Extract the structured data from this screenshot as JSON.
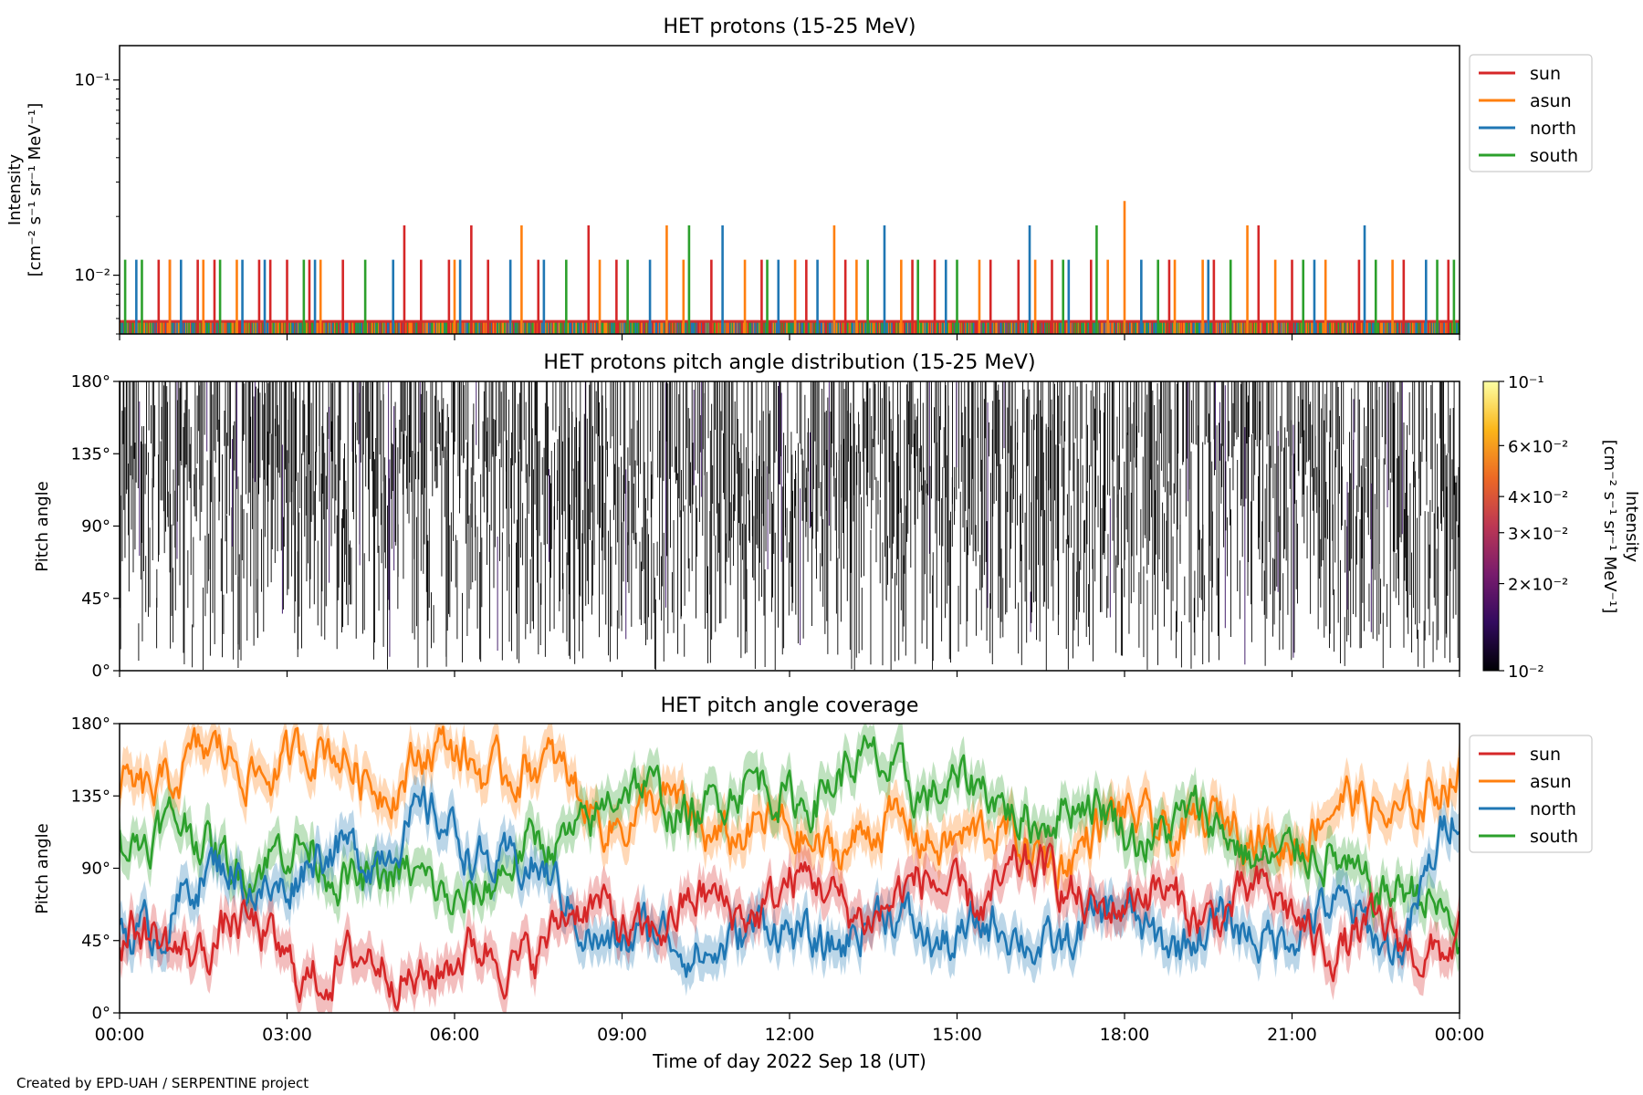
{
  "chart_data": [
    {
      "type": "line",
      "title": "HET protons (15-25 MeV)",
      "ylabel_line1": "Intensity",
      "ylabel_line2": "[cm⁻² s⁻¹ sr⁻¹ MeV⁻¹]",
      "yscale": "log",
      "ylim": [
        0.005,
        0.15
      ],
      "yticks": [
        0.01,
        0.1
      ],
      "ytick_labels": [
        "10⁻²",
        "10⁻¹"
      ],
      "xlim_hours": [
        0,
        24
      ],
      "legend": {
        "placement": "outside-right-top",
        "entries": [
          "sun",
          "asun",
          "north",
          "south"
        ]
      },
      "baseline_value": 0.0058,
      "series": [
        {
          "name": "sun",
          "color": "#d62728",
          "spikes": [
            [
              0.7,
              0.012
            ],
            [
              0.9,
              0.012
            ],
            [
              1.4,
              0.012
            ],
            [
              1.7,
              0.012
            ],
            [
              2.5,
              0.012
            ],
            [
              2.7,
              0.012
            ],
            [
              3.0,
              0.012
            ],
            [
              3.4,
              0.012
            ],
            [
              4.0,
              0.012
            ],
            [
              5.1,
              0.018
            ],
            [
              5.4,
              0.012
            ],
            [
              5.9,
              0.012
            ],
            [
              6.3,
              0.018
            ],
            [
              6.6,
              0.012
            ],
            [
              7.5,
              0.012
            ],
            [
              8.4,
              0.018
            ],
            [
              8.9,
              0.012
            ],
            [
              10.6,
              0.012
            ],
            [
              11.5,
              0.012
            ],
            [
              12.3,
              0.012
            ],
            [
              13.0,
              0.012
            ],
            [
              14.2,
              0.012
            ],
            [
              14.6,
              0.012
            ],
            [
              15.6,
              0.012
            ],
            [
              16.1,
              0.012
            ],
            [
              16.7,
              0.012
            ],
            [
              17.4,
              0.012
            ],
            [
              18.8,
              0.012
            ],
            [
              19.6,
              0.012
            ],
            [
              20.4,
              0.018
            ],
            [
              21.0,
              0.012
            ],
            [
              22.2,
              0.012
            ],
            [
              23.0,
              0.012
            ],
            [
              23.8,
              0.012
            ]
          ]
        },
        {
          "name": "asun",
          "color": "#ff7f0e",
          "spikes": [
            [
              0.9,
              0.012
            ],
            [
              1.5,
              0.012
            ],
            [
              2.1,
              0.012
            ],
            [
              3.6,
              0.012
            ],
            [
              6.0,
              0.012
            ],
            [
              7.2,
              0.018
            ],
            [
              8.6,
              0.012
            ],
            [
              9.8,
              0.018
            ],
            [
              10.1,
              0.012
            ],
            [
              11.2,
              0.012
            ],
            [
              12.1,
              0.012
            ],
            [
              12.8,
              0.018
            ],
            [
              13.2,
              0.012
            ],
            [
              14.0,
              0.012
            ],
            [
              15.4,
              0.012
            ],
            [
              16.4,
              0.012
            ],
            [
              17.7,
              0.012
            ],
            [
              18.0,
              0.024
            ],
            [
              18.9,
              0.012
            ],
            [
              19.4,
              0.012
            ],
            [
              20.2,
              0.018
            ],
            [
              20.7,
              0.012
            ],
            [
              21.6,
              0.012
            ],
            [
              22.8,
              0.012
            ]
          ]
        },
        {
          "name": "north",
          "color": "#1f77b4",
          "spikes": [
            [
              0.3,
              0.012
            ],
            [
              1.1,
              0.012
            ],
            [
              2.2,
              0.012
            ],
            [
              2.6,
              0.012
            ],
            [
              3.5,
              0.012
            ],
            [
              4.9,
              0.012
            ],
            [
              6.1,
              0.012
            ],
            [
              7.0,
              0.012
            ],
            [
              7.6,
              0.012
            ],
            [
              9.5,
              0.012
            ],
            [
              10.8,
              0.018
            ],
            [
              11.8,
              0.012
            ],
            [
              12.5,
              0.012
            ],
            [
              13.7,
              0.018
            ],
            [
              14.8,
              0.012
            ],
            [
              16.3,
              0.018
            ],
            [
              17.0,
              0.012
            ],
            [
              18.3,
              0.012
            ],
            [
              19.5,
              0.012
            ],
            [
              21.4,
              0.012
            ],
            [
              22.3,
              0.018
            ],
            [
              23.4,
              0.012
            ]
          ]
        },
        {
          "name": "south",
          "color": "#2ca02c",
          "spikes": [
            [
              0.1,
              0.012
            ],
            [
              0.4,
              0.012
            ],
            [
              1.8,
              0.012
            ],
            [
              3.3,
              0.012
            ],
            [
              4.4,
              0.012
            ],
            [
              8.0,
              0.012
            ],
            [
              9.1,
              0.012
            ],
            [
              10.2,
              0.018
            ],
            [
              11.6,
              0.012
            ],
            [
              13.4,
              0.012
            ],
            [
              14.3,
              0.012
            ],
            [
              15.0,
              0.012
            ],
            [
              16.9,
              0.012
            ],
            [
              17.5,
              0.018
            ],
            [
              18.6,
              0.012
            ],
            [
              19.9,
              0.012
            ],
            [
              21.2,
              0.012
            ],
            [
              22.5,
              0.012
            ],
            [
              23.6,
              0.012
            ],
            [
              23.9,
              0.012
            ]
          ]
        }
      ]
    },
    {
      "type": "heatmap",
      "title": "HET protons pitch angle distribution (15-25 MeV)",
      "ylabel": "Pitch angle",
      "ylim": [
        0,
        180
      ],
      "yticks": [
        0,
        45,
        90,
        135,
        180
      ],
      "ytick_labels": [
        "0°",
        "45°",
        "90°",
        "135°",
        "180°"
      ],
      "xlim_hours": [
        0,
        24
      ],
      "colorbar": {
        "label": "Intensity",
        "units": "[cm⁻² s⁻¹ sr⁻¹ MeV⁻¹]",
        "scale": "log",
        "range": [
          0.01,
          0.1
        ],
        "ticks": [
          0.01,
          0.02,
          0.03,
          0.04,
          0.06,
          0.1
        ],
        "tick_labels": [
          "10⁻²",
          "2×10⁻²",
          "3×10⁻²",
          "4×10⁻²",
          "6×10⁻²",
          "10⁻¹"
        ],
        "colormap": "inferno",
        "stops": [
          "#000004",
          "#320a5e",
          "#781c6d",
          "#bc3754",
          "#ed6925",
          "#fbb61a",
          "#fcffa4"
        ]
      },
      "note": "sparse near-minimum intensities rendered as dark vertical strokes"
    },
    {
      "type": "line",
      "title": "HET pitch angle coverage",
      "ylabel": "Pitch angle",
      "xlabel": "Time of day 2022 Sep 18 (UT)",
      "ylim": [
        0,
        180
      ],
      "yticks": [
        0,
        45,
        90,
        135,
        180
      ],
      "ytick_labels": [
        "0°",
        "45°",
        "90°",
        "135°",
        "180°"
      ],
      "xlim_hours": [
        0,
        24
      ],
      "xticks_hours": [
        0,
        3,
        6,
        9,
        12,
        15,
        18,
        21,
        24
      ],
      "xtick_labels": [
        "00:00",
        "03:00",
        "06:00",
        "09:00",
        "12:00",
        "15:00",
        "18:00",
        "21:00",
        "00:00"
      ],
      "legend": {
        "placement": "outside-right-top",
        "entries": [
          "sun",
          "asun",
          "north",
          "south"
        ]
      },
      "shaded_half_width_deg": 12,
      "series": [
        {
          "name": "sun",
          "color": "#d62728",
          "hours": [
            0,
            1,
            2,
            3,
            4,
            5,
            6,
            7,
            8,
            9,
            10,
            11,
            12,
            13,
            14,
            15,
            16,
            17,
            18,
            19,
            20,
            21,
            22,
            23,
            24
          ],
          "values": [
            40,
            45,
            50,
            35,
            25,
            30,
            30,
            35,
            60,
            55,
            60,
            65,
            80,
            65,
            75,
            70,
            85,
            75,
            70,
            65,
            70,
            60,
            45,
            40,
            50
          ]
        },
        {
          "name": "asun",
          "color": "#ff7f0e",
          "hours": [
            0,
            1,
            2,
            3,
            4,
            5,
            6,
            7,
            8,
            9,
            10,
            11,
            12,
            13,
            14,
            15,
            16,
            17,
            18,
            19,
            20,
            21,
            22,
            23,
            24
          ],
          "values": [
            140,
            150,
            155,
            160,
            155,
            150,
            160,
            155,
            140,
            125,
            120,
            115,
            105,
            110,
            110,
            115,
            100,
            105,
            115,
            120,
            110,
            115,
            125,
            130,
            140
          ]
        },
        {
          "name": "north",
          "color": "#1f77b4",
          "hours": [
            0,
            1,
            2,
            3,
            4,
            5,
            6,
            7,
            8,
            9,
            10,
            11,
            12,
            13,
            14,
            15,
            16,
            17,
            18,
            19,
            20,
            21,
            22,
            23,
            24
          ],
          "values": [
            55,
            65,
            90,
            80,
            100,
            115,
            110,
            95,
            65,
            45,
            40,
            50,
            45,
            50,
            55,
            50,
            45,
            50,
            55,
            50,
            45,
            60,
            55,
            50,
            125
          ]
        },
        {
          "name": "south",
          "color": "#2ca02c",
          "hours": [
            0,
            1,
            2,
            3,
            4,
            5,
            6,
            7,
            8,
            9,
            10,
            11,
            12,
            13,
            14,
            15,
            16,
            17,
            18,
            19,
            20,
            21,
            22,
            23,
            24
          ],
          "values": [
            115,
            110,
            100,
            95,
            95,
            75,
            75,
            85,
            115,
            135,
            130,
            135,
            140,
            145,
            150,
            135,
            130,
            125,
            120,
            115,
            110,
            95,
            90,
            75,
            45
          ]
        }
      ]
    }
  ],
  "footer": {
    "credit": "Created by EPD-UAH / SERPENTINE project"
  }
}
